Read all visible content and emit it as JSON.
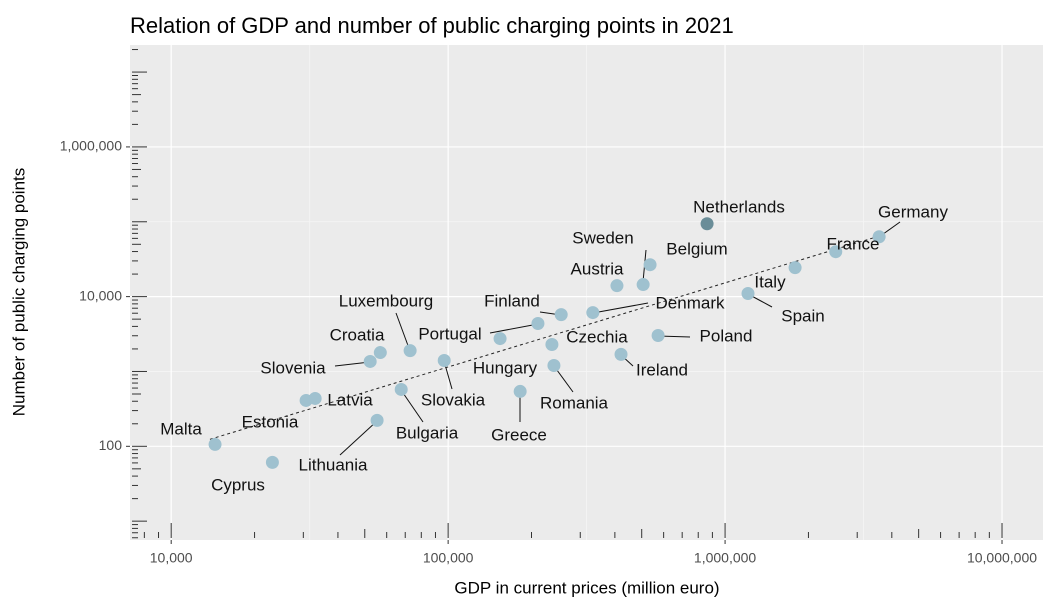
{
  "chart_data": {
    "type": "scatter",
    "title": "Relation of GDP and number of public charging points in 2021",
    "x_label": "GDP in current prices (million euro)",
    "y_label": "Number of public charging points",
    "log_x": true,
    "log_y": true,
    "grid": true,
    "labels": [
      "Malta",
      "Cyprus",
      "Estonia",
      "Latvia",
      "Lithuania",
      "Slovenia",
      "Croatia",
      "Luxembourg",
      "Bulgaria",
      "Slovakia",
      "Hungary",
      "Portugal",
      "Finland",
      "Czechia",
      "Denmark",
      "Greece",
      "Romania",
      "Ireland",
      "Poland",
      "Austria",
      "Sweden",
      "Belgium",
      "Netherlands",
      "Germany",
      "France",
      "Italy",
      "Spain"
    ],
    "x": [
      14400,
      23200,
      30700,
      33100,
      55400,
      52300,
      56900,
      72900,
      67700,
      96800,
      154000,
      211000,
      256000,
      237000,
      333000,
      182000,
      241000,
      421000,
      573000,
      407000,
      506000,
      536000,
      861000,
      3600000,
      2510000,
      1790000,
      1210000
    ],
    "values": [
      106,
      61,
      410,
      436,
      222,
      1360,
      1790,
      1900,
      575,
      1400,
      2750,
      4370,
      5750,
      2290,
      6120,
      541,
      1200,
      1690,
      3020,
      14000,
      14500,
      26700,
      94000,
      63100,
      39800,
      24400,
      11000
    ],
    "colors": [
      "#9fc1cf",
      "#9fc1cf",
      "#9fc1cf",
      "#9fc1cf",
      "#9fc1cf",
      "#9fc1cf",
      "#9fc1cf",
      "#9fc1cf",
      "#9fc1cf",
      "#9fc1cf",
      "#9fc1cf",
      "#9fc1cf",
      "#9fc1cf",
      "#9fc1cf",
      "#9fc1cf",
      "#9fc1cf",
      "#9fc1cf",
      "#9fc1cf",
      "#9fc1cf",
      "#9fc1cf",
      "#9fc1cf",
      "#9fc1cf",
      "#6a8d98",
      "#9fc1cf",
      "#9fc1cf",
      "#9fc1cf",
      "#9fc1cf"
    ],
    "trend_line": {
      "x": [
        13800,
        3630000
      ],
      "y": [
        124,
        65000
      ]
    },
    "xlim": [
      7100,
      14060000
    ],
    "ylim": [
      5.6,
      23000000
    ],
    "xticks": [
      {
        "value": 10000,
        "label": "10,000"
      },
      {
        "value": 100000,
        "label": "100,000"
      },
      {
        "value": 1000000,
        "label": "1,000,000"
      },
      {
        "value": 10000000,
        "label": "10,000,000"
      }
    ],
    "yticks": [
      100,
      {
        "value": 10000,
        "label": "10,000"
      },
      {
        "value": 1000000,
        "label": "1,000,000"
      }
    ]
  }
}
